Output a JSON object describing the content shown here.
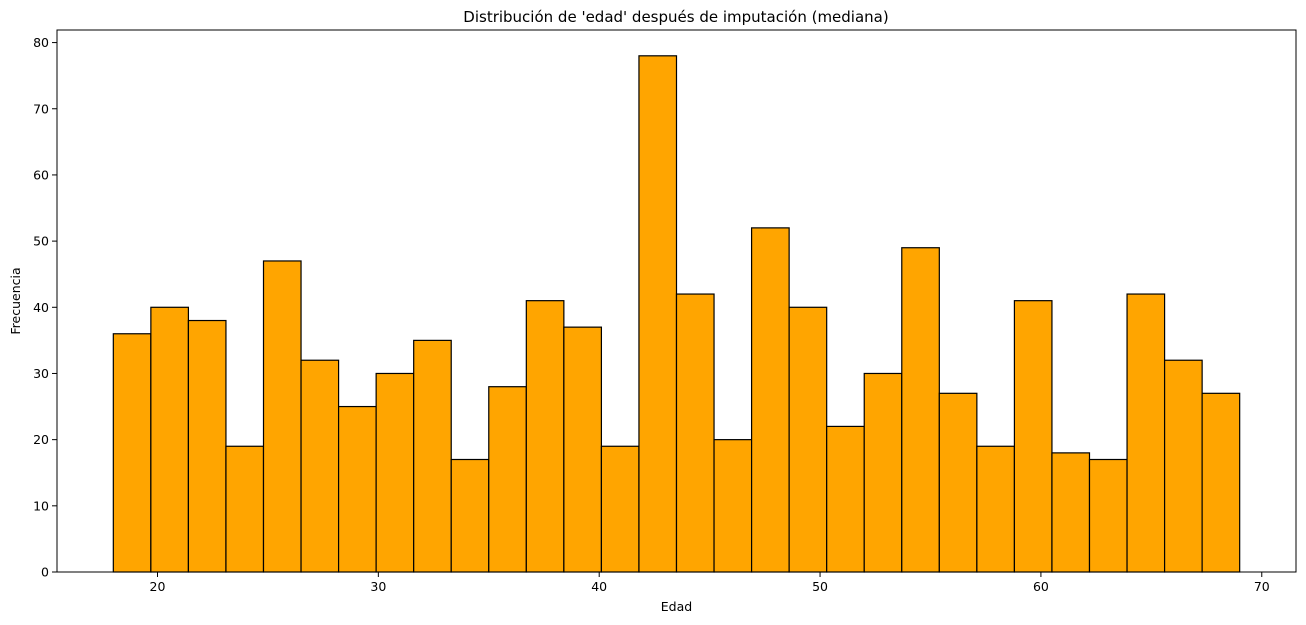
{
  "chart_data": {
    "type": "bar",
    "title": "Distribución de 'edad' después de imputación (mediana)",
    "xlabel": "Edad",
    "ylabel": "Frecuencia",
    "bin_start": 18,
    "bin_end": 69,
    "bins": 30,
    "values": [
      36,
      40,
      38,
      19,
      47,
      32,
      25,
      30,
      35,
      17,
      28,
      41,
      37,
      19,
      78,
      42,
      20,
      52,
      40,
      22,
      30,
      49,
      27,
      19,
      41,
      18,
      17,
      42,
      32,
      27
    ],
    "xlim": [
      15.45,
      71.55
    ],
    "ylim": [
      0,
      81.9
    ],
    "xticks": [
      20,
      30,
      40,
      50,
      60,
      70
    ],
    "yticks": [
      0,
      10,
      20,
      30,
      40,
      50,
      60,
      70,
      80
    ],
    "bar_color": "#FFA500",
    "edge_color": "#000000",
    "grid": false,
    "legend": null
  }
}
